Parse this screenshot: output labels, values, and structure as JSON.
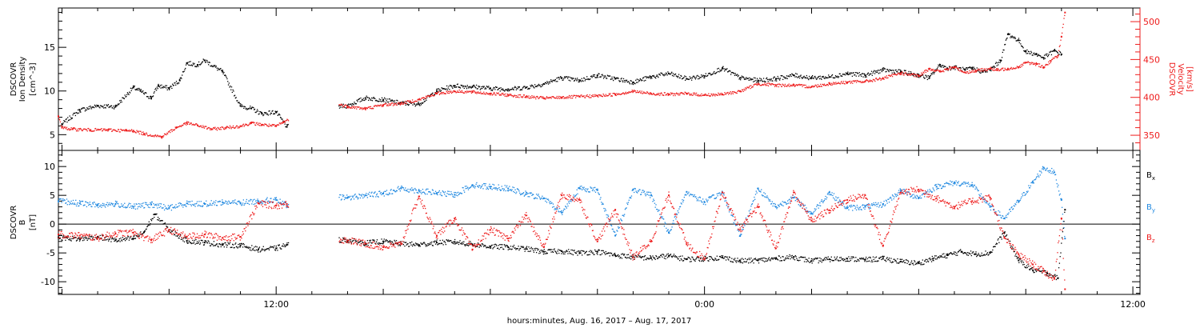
{
  "colors": {
    "black": "#000000",
    "red": "#ee1c1c",
    "blue": "#1f88e0"
  },
  "chart_data": [
    {
      "type": "scatter",
      "panel": "density-velocity",
      "x_units": "hours since 2017-08-16 00:00",
      "xlim": [
        5.9,
        36.2
      ],
      "time_ticks": [
        {
          "x": 12,
          "label": "12:00"
        },
        {
          "x": 24,
          "label": "0:00"
        },
        {
          "x": 36,
          "label": "12:00"
        }
      ],
      "xlabel": "hours:minutes, Aug. 16, 2017 – Aug. 17, 2017",
      "ylabel_left": [
        "DSCOVR",
        "Ion Density",
        "[cm^-3]"
      ],
      "ylabel_right": [
        "DSCOVR",
        "Velocity",
        "[km/s]"
      ],
      "ylim_left": [
        3.2,
        19.5
      ],
      "ylim_right": [
        330,
        518
      ],
      "yticks_left": [
        5,
        10,
        15
      ],
      "yticks_right": [
        350,
        400,
        450,
        500
      ],
      "gap": [
        12.35,
        13.75
      ],
      "series": [
        {
          "name": "Ion Density",
          "color": "black",
          "axis": "left",
          "x": [
            6.0,
            6.5,
            7.0,
            7.5,
            8.0,
            8.2,
            8.5,
            8.7,
            9.0,
            9.3,
            9.5,
            9.8,
            10.0,
            10.5,
            11.0,
            11.3,
            11.6,
            12.0,
            12.3,
            12.6,
            13.0,
            13.3,
            13.5,
            13.7,
            14.0,
            14.5,
            15.0,
            15.5,
            16.0,
            16.5,
            17.0,
            17.5,
            18.0,
            18.5,
            19.0,
            19.5,
            20.0,
            20.5,
            21.0,
            21.5,
            22.0,
            22.5,
            23.0,
            23.5,
            24.0,
            24.5,
            25.0,
            25.5,
            26.0,
            26.5,
            27.0,
            27.5,
            28.0,
            28.5,
            29.0,
            29.5,
            30.0,
            30.3,
            30.6,
            30.8,
            31.0,
            31.3,
            31.5,
            31.8,
            32.0,
            32.3,
            32.5,
            32.8,
            33.0,
            33.3,
            33.5,
            33.8,
            34.0
          ],
          "y": [
            6.2,
            7.8,
            8.3,
            8.2,
            10.4,
            10.0,
            9.2,
            10.6,
            10.3,
            11.2,
            13.2,
            13.0,
            13.5,
            12.2,
            8.3,
            8.0,
            7.4,
            7.6,
            5.9,
            6.1,
            6.5,
            7.1,
            7.5,
            8.2,
            8.3,
            9.2,
            9.0,
            8.6,
            8.5,
            10.0,
            10.6,
            10.5,
            10.3,
            10.2,
            10.4,
            10.8,
            11.5,
            11.2,
            11.8,
            11.4,
            11.0,
            11.6,
            12.0,
            11.4,
            11.7,
            12.6,
            11.5,
            11.2,
            11.4,
            11.8,
            11.5,
            11.6,
            12.0,
            11.8,
            12.4,
            12.2,
            11.8,
            11.5,
            13.0,
            12.6,
            12.7,
            12.4,
            12.6,
            12.2,
            12.4,
            13.5,
            16.5,
            15.8,
            14.5,
            14.2,
            13.8,
            14.6,
            14.2
          ]
        },
        {
          "name": "Velocity",
          "color": "red",
          "axis": "right",
          "x": [
            5.9,
            6.0,
            6.3,
            6.8,
            7.3,
            7.8,
            8.0,
            8.3,
            8.8,
            9.2,
            9.5,
            9.8,
            10.2,
            10.6,
            11.0,
            11.3,
            11.6,
            12.0,
            12.2,
            12.6,
            13.0,
            13.3,
            13.6,
            14.0,
            14.5,
            15.0,
            15.5,
            16.0,
            16.5,
            17.0,
            17.5,
            18.0,
            18.5,
            19.0,
            19.5,
            20.0,
            20.5,
            21.0,
            21.5,
            22.0,
            22.5,
            23.0,
            23.5,
            24.0,
            24.5,
            25.0,
            25.5,
            26.0,
            26.5,
            27.0,
            27.5,
            28.0,
            28.5,
            29.0,
            29.5,
            30.0,
            30.3,
            30.6,
            31.0,
            31.3,
            31.6,
            32.0,
            32.2,
            32.5,
            32.8,
            33.0,
            33.3,
            33.5,
            33.7,
            33.9,
            34.0,
            34.1
          ],
          "y": [
            375,
            360,
            358,
            357,
            357,
            356,
            356,
            352,
            348,
            360,
            366,
            363,
            358,
            360,
            362,
            366,
            364,
            362,
            367,
            378,
            391,
            390,
            392,
            388,
            385,
            390,
            392,
            397,
            405,
            408,
            407,
            405,
            403,
            401,
            399,
            400,
            401,
            402,
            404,
            408,
            405,
            404,
            405,
            403,
            404,
            408,
            418,
            416,
            416,
            414,
            418,
            420,
            421,
            425,
            432,
            428,
            438,
            434,
            440,
            433,
            435,
            438,
            436,
            438,
            440,
            446,
            444,
            440,
            448,
            455,
            480,
            512
          ]
        }
      ]
    },
    {
      "type": "scatter",
      "panel": "magnetic-field",
      "x_units": "hours since 2017-08-16 00:00",
      "xlim": [
        5.9,
        36.2
      ],
      "time_ticks": [
        {
          "x": 12,
          "label": "12:00"
        },
        {
          "x": 24,
          "label": "0:00"
        },
        {
          "x": 36,
          "label": "12:00"
        }
      ],
      "ylabel_left": [
        "DSCOVR",
        "B",
        "[nT]"
      ],
      "ylim": [
        -12.2,
        12.8
      ],
      "yticks": [
        -10,
        -5,
        0,
        5,
        10
      ],
      "zero_line": true,
      "gap": [
        12.35,
        13.75
      ],
      "series": [
        {
          "name": "Bx",
          "label_main": "B",
          "label_sub": "x",
          "color": "black",
          "x": [
            5.9,
            6.5,
            7.0,
            7.5,
            8.0,
            8.3,
            8.6,
            9.0,
            9.5,
            10.0,
            10.5,
            11.0,
            11.5,
            12.0,
            12.3,
            12.6,
            13.0,
            13.3,
            13.6,
            14.0,
            14.5,
            15.0,
            15.5,
            16.0,
            16.5,
            17.0,
            17.5,
            18.0,
            18.5,
            19.0,
            19.5,
            20.0,
            20.5,
            21.0,
            21.5,
            22.0,
            22.5,
            23.0,
            23.5,
            24.0,
            24.5,
            25.0,
            25.5,
            26.0,
            26.5,
            27.0,
            27.5,
            28.0,
            28.5,
            29.0,
            29.5,
            30.0,
            30.4,
            30.8,
            31.2,
            31.6,
            32.0,
            32.4,
            32.8,
            33.2,
            33.6,
            33.9,
            34.1
          ],
          "y": [
            -2.3,
            -2.6,
            -2.2,
            -2.8,
            -2.5,
            -1.4,
            1.7,
            -1.0,
            -2.9,
            -3.2,
            -3.6,
            -3.7,
            -4.4,
            -4.2,
            -3.6,
            -3.9,
            -3.4,
            -3.2,
            -2.7,
            -2.8,
            -3.3,
            -3.0,
            -3.4,
            -3.6,
            -3.2,
            -3.1,
            -3.5,
            -3.9,
            -4.0,
            -4.3,
            -4.8,
            -4.7,
            -5.0,
            -4.8,
            -5.4,
            -5.7,
            -5.9,
            -5.5,
            -6.1,
            -6.0,
            -5.8,
            -6.4,
            -6.3,
            -6.0,
            -5.7,
            -6.4,
            -6.1,
            -6.0,
            -6.2,
            -6.0,
            -6.5,
            -6.8,
            -6.0,
            -5.4,
            -4.8,
            -5.2,
            -5.0,
            -1.5,
            -6.3,
            -8.0,
            -8.5,
            -9.4,
            2.5
          ]
        },
        {
          "name": "By",
          "label_main": "B",
          "label_sub": "y",
          "color": "blue",
          "x": [
            5.9,
            6.5,
            7.0,
            7.5,
            8.0,
            8.5,
            9.0,
            9.5,
            10.0,
            10.5,
            11.0,
            11.5,
            12.0,
            12.3,
            12.6,
            13.0,
            13.3,
            13.6,
            14.0,
            14.5,
            15.0,
            15.5,
            16.0,
            16.5,
            17.0,
            17.5,
            18.0,
            18.5,
            19.0,
            19.5,
            20.0,
            20.5,
            21.0,
            21.5,
            22.0,
            22.5,
            23.0,
            23.5,
            24.0,
            24.5,
            25.0,
            25.5,
            26.0,
            26.5,
            27.0,
            27.5,
            28.0,
            28.5,
            29.0,
            29.5,
            30.0,
            30.5,
            31.0,
            31.5,
            32.0,
            32.4,
            32.8,
            33.2,
            33.5,
            33.8,
            34.0,
            34.1
          ],
          "y": [
            4.0,
            3.6,
            3.3,
            3.5,
            3.0,
            3.4,
            2.8,
            3.6,
            3.5,
            3.8,
            3.7,
            4.0,
            4.2,
            3.2,
            1.4,
            3.0,
            2.8,
            4.8,
            4.6,
            5.0,
            5.3,
            6.2,
            5.8,
            5.4,
            5.1,
            6.8,
            6.5,
            6.2,
            5.2,
            4.5,
            2.0,
            6.2,
            5.9,
            -2.0,
            6.0,
            5.0,
            -1.5,
            5.6,
            3.8,
            5.5,
            -2.0,
            6.2,
            3.0,
            4.6,
            1.8,
            5.5,
            2.8,
            3.0,
            3.4,
            5.8,
            4.6,
            6.5,
            7.2,
            6.8,
            3.0,
            1.0,
            4.0,
            7.2,
            9.8,
            9.0,
            4.2,
            -2.5
          ]
        },
        {
          "name": "Bz",
          "label_main": "B",
          "label_sub": "z",
          "color": "red",
          "x": [
            5.9,
            6.5,
            7.0,
            7.5,
            8.0,
            8.5,
            9.0,
            9.5,
            10.0,
            10.5,
            11.0,
            11.5,
            12.0,
            12.3,
            12.6,
            13.0,
            13.3,
            13.6,
            14.0,
            14.5,
            15.0,
            15.5,
            16.0,
            16.5,
            17.0,
            17.5,
            18.0,
            18.5,
            19.0,
            19.5,
            20.0,
            20.5,
            21.0,
            21.5,
            22.0,
            22.5,
            23.0,
            23.5,
            24.0,
            24.5,
            25.0,
            25.5,
            26.0,
            26.5,
            27.0,
            27.5,
            28.0,
            28.5,
            29.0,
            29.5,
            30.0,
            30.5,
            31.0,
            31.5,
            32.0,
            32.4,
            32.8,
            33.2,
            33.5,
            33.8,
            34.0,
            34.1
          ],
          "y": [
            -1.8,
            -2.0,
            -2.4,
            -1.6,
            -1.5,
            -2.8,
            -1.0,
            -2.2,
            -1.8,
            -2.4,
            -2.2,
            3.6,
            3.2,
            3.5,
            3.0,
            -4.2,
            -5.6,
            -2.6,
            -2.8,
            -3.4,
            -4.0,
            -3.5,
            4.8,
            -2.0,
            1.0,
            -4.4,
            -1.0,
            -2.5,
            1.5,
            -4.0,
            5.0,
            4.2,
            -3.0,
            2.5,
            -5.8,
            -3.0,
            5.0,
            -3.5,
            -6.0,
            5.5,
            -1.0,
            3.0,
            -4.2,
            5.5,
            0.6,
            2.4,
            4.2,
            5.0,
            -3.8,
            5.5,
            6.0,
            4.5,
            3.0,
            4.0,
            4.6,
            -2.4,
            -5.3,
            -7.0,
            -8.2,
            -9.5,
            1.0,
            -11.3
          ]
        }
      ]
    }
  ]
}
